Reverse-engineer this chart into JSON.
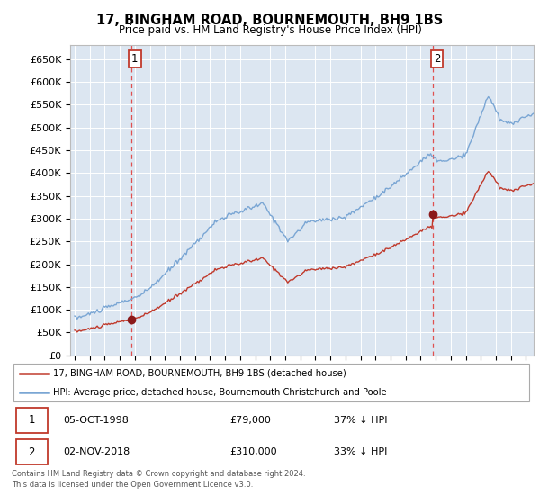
{
  "title": "17, BINGHAM ROAD, BOURNEMOUTH, BH9 1BS",
  "subtitle": "Price paid vs. HM Land Registry's House Price Index (HPI)",
  "ylabel_ticks": [
    "£0",
    "£50K",
    "£100K",
    "£150K",
    "£200K",
    "£250K",
    "£300K",
    "£350K",
    "£400K",
    "£450K",
    "£500K",
    "£550K",
    "£600K",
    "£650K"
  ],
  "ytick_values": [
    0,
    50000,
    100000,
    150000,
    200000,
    250000,
    300000,
    350000,
    400000,
    450000,
    500000,
    550000,
    600000,
    650000
  ],
  "ylim": [
    0,
    680000
  ],
  "xlim_start": 1994.7,
  "xlim_end": 2025.5,
  "sale1_x": 1998.75,
  "sale1_y": 79000,
  "sale1_label": "1",
  "sale2_x": 2018.83,
  "sale2_y": 310000,
  "sale2_label": "2",
  "legend_line1": "17, BINGHAM ROAD, BOURNEMOUTH, BH9 1BS (detached house)",
  "legend_line2": "HPI: Average price, detached house, Bournemouth Christchurch and Poole",
  "footnote1": "Contains HM Land Registry data © Crown copyright and database right 2024.",
  "footnote2": "This data is licensed under the Open Government Licence v3.0.",
  "bg_color": "#dce6f1",
  "line_hpi_color": "#7aa6d4",
  "line_sale_color": "#c0392b",
  "dashed_vline_color": "#e05050",
  "marker_color": "#8b1a1a",
  "grid_color": "#ffffff"
}
